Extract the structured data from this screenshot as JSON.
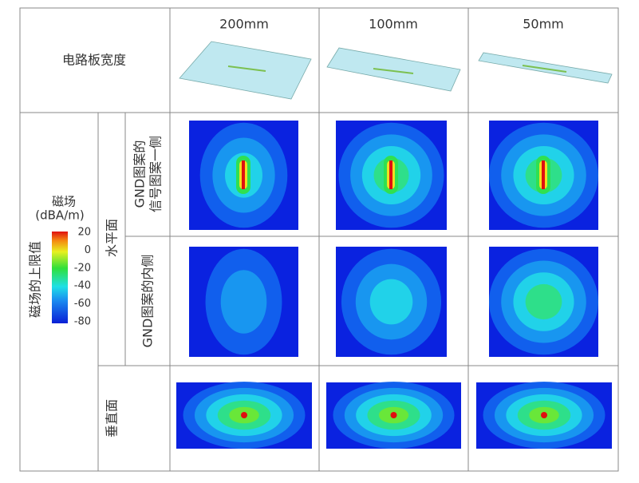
{
  "header": {
    "row_label": "电路板宽度",
    "columns": [
      "200mm",
      "100mm",
      "50mm"
    ]
  },
  "legend": {
    "title": "磁场",
    "unit": "(dBA/m)",
    "ticks": [
      20,
      0,
      -20,
      -40,
      -60,
      -80
    ],
    "side_label": "磁场的上限值"
  },
  "rows": {
    "horizontal_plane": "水平面",
    "horizontal": [
      {
        "lines": [
          "GND图案的",
          "信号图案一侧"
        ]
      },
      {
        "lines": [
          "GND图案的内侧"
        ]
      }
    ],
    "vertical_plane": "垂直面"
  }
}
